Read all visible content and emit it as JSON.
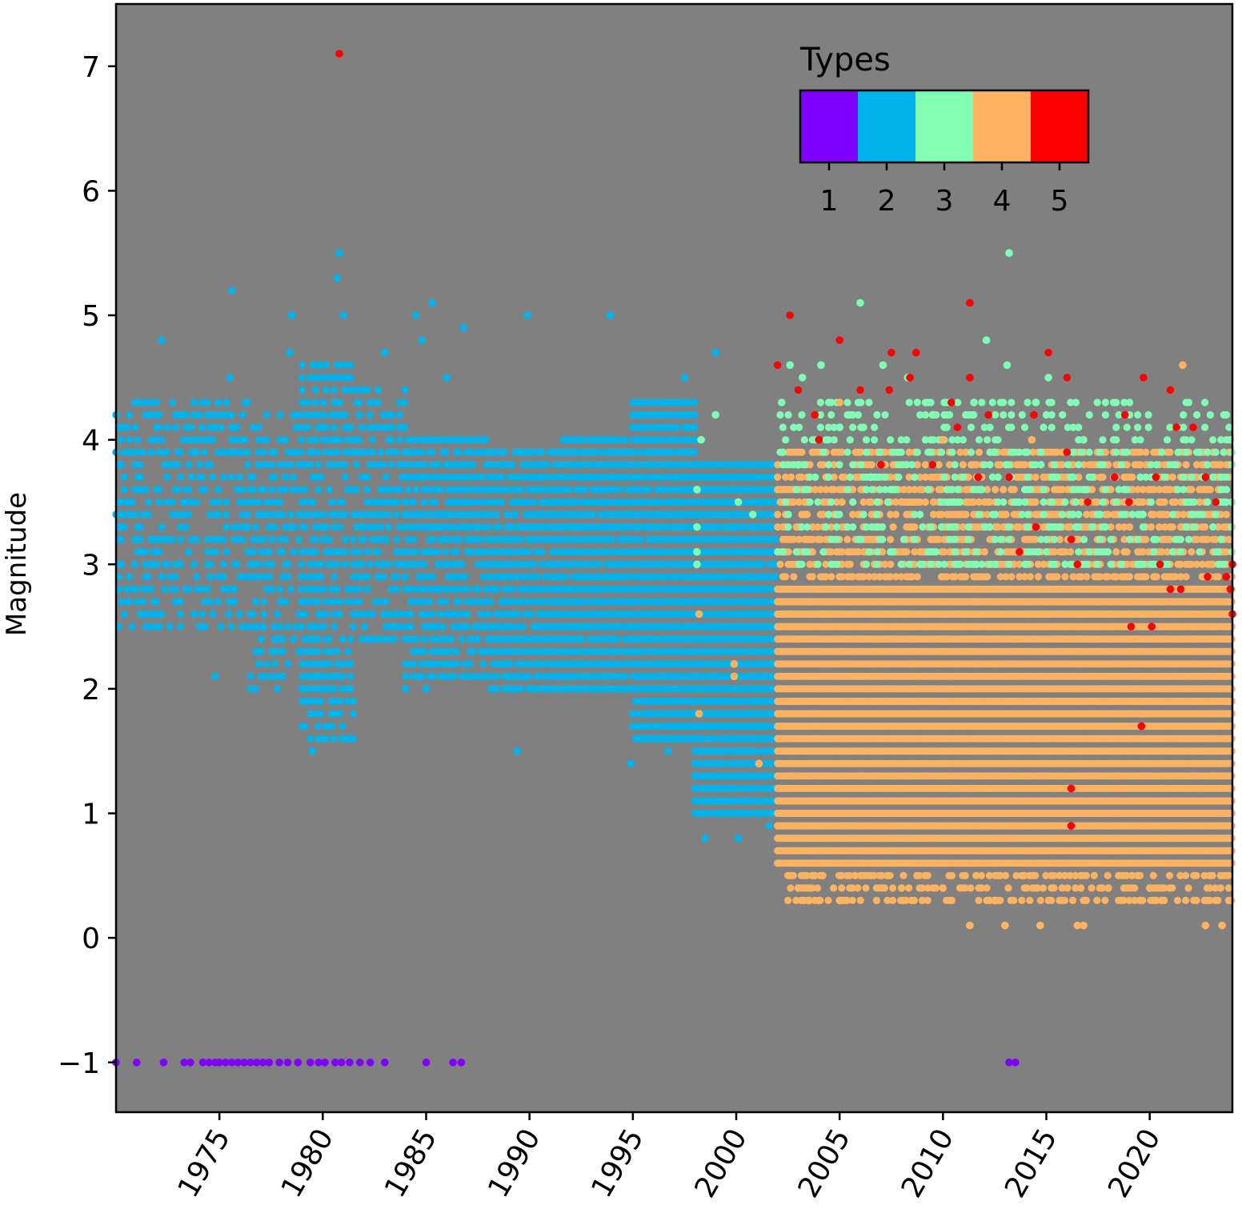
{
  "chart_data": {
    "type": "scatter",
    "title": "",
    "xlabel": "",
    "ylabel": "Magnitude",
    "xlim": [
      1970,
      2024
    ],
    "ylim": [
      -1.4,
      7.5
    ],
    "x_ticks": [
      "1975",
      "1980",
      "1985",
      "1990",
      "1995",
      "2000",
      "2005",
      "2010",
      "2015",
      "2020"
    ],
    "y_ticks": [
      "−1",
      "0",
      "1",
      "2",
      "3",
      "4",
      "5",
      "6",
      "7"
    ],
    "grid": false,
    "background_color": "#808080",
    "legend": {
      "title": "Types",
      "placement": "top-right",
      "kind": "colorbar",
      "categories": [
        "1",
        "2",
        "3",
        "4",
        "5"
      ],
      "colors": [
        "#8000ff",
        "#00b4eb",
        "#80ffb4",
        "#ffb360",
        "#ff0000"
      ]
    },
    "series": [
      {
        "name": "1",
        "color": "#8000ff",
        "points": [
          [
            1970.0,
            -1
          ],
          [
            1971.0,
            -1
          ],
          [
            1972.3,
            -1
          ],
          [
            1973.3,
            -1
          ],
          [
            1973.6,
            -1
          ],
          [
            1974.2,
            -1
          ],
          [
            1974.5,
            -1
          ],
          [
            1974.8,
            -1
          ],
          [
            1975.0,
            -1
          ],
          [
            1975.3,
            -1
          ],
          [
            1975.6,
            -1
          ],
          [
            1975.9,
            -1
          ],
          [
            1976.2,
            -1
          ],
          [
            1976.5,
            -1
          ],
          [
            1976.8,
            -1
          ],
          [
            1977.1,
            -1
          ],
          [
            1977.4,
            -1
          ],
          [
            1977.9,
            -1
          ],
          [
            1978.3,
            -1
          ],
          [
            1978.8,
            -1
          ],
          [
            1979.4,
            -1
          ],
          [
            1979.8,
            -1
          ],
          [
            1980.1,
            -1
          ],
          [
            1980.6,
            -1
          ],
          [
            1980.9,
            -1
          ],
          [
            1981.3,
            -1
          ],
          [
            1981.8,
            -1
          ],
          [
            1982.3,
            -1
          ],
          [
            1983.0,
            -1
          ],
          [
            1985.0,
            -1
          ],
          [
            1986.3,
            -1
          ],
          [
            1986.7,
            -1
          ],
          [
            2013.2,
            -1
          ],
          [
            2013.5,
            -1
          ]
        ]
      },
      {
        "name": "2",
        "color": "#00b4eb",
        "points": [
          [
            1972.2,
            4.8
          ],
          [
            1975.6,
            5.2
          ],
          [
            1978.5,
            5.0
          ],
          [
            1980.8,
            5.5
          ],
          [
            1980.7,
            5.3
          ],
          [
            1981.0,
            5.0
          ],
          [
            1984.5,
            5.0
          ],
          [
            1985.3,
            5.1
          ],
          [
            1989.9,
            5.0
          ],
          [
            1993.9,
            5.0
          ],
          [
            1984.8,
            4.8
          ],
          [
            1986.8,
            4.9
          ],
          [
            1983.0,
            4.7
          ],
          [
            1999.0,
            4.7
          ],
          [
            1978.4,
            4.7
          ],
          [
            1979.5,
            1.5
          ],
          [
            1989.4,
            1.5
          ],
          [
            1994.9,
            1.4
          ],
          [
            1998.5,
            0.8
          ],
          [
            2000.1,
            0.8
          ],
          [
            2001.6,
            0.9
          ],
          [
            1974.8,
            2.1
          ],
          [
            1977.6,
            2.1
          ],
          [
            1984.0,
            2.0
          ],
          [
            1985.0,
            2.0
          ],
          [
            1996.7,
            1.5
          ],
          [
            1998.0,
            1.8
          ],
          [
            1999.4,
            1.0
          ],
          [
            1999.8,
            1.1
          ],
          [
            1997.5,
            4.5
          ],
          [
            1986.0,
            4.5
          ],
          [
            1975.5,
            4.5
          ]
        ]
      },
      {
        "name": "3",
        "color": "#80ffb4",
        "points": [
          [
            2013.2,
            5.5
          ],
          [
            2006.0,
            5.1
          ],
          [
            2012.1,
            4.8
          ],
          [
            2002.6,
            4.6
          ],
          [
            2003.2,
            4.5
          ],
          [
            2004.1,
            4.6
          ],
          [
            2007.1,
            4.6
          ],
          [
            2008.3,
            4.5
          ],
          [
            2013.1,
            4.6
          ],
          [
            2015.1,
            4.5
          ],
          [
            1998.3,
            4.0
          ],
          [
            1999.0,
            4.2
          ],
          [
            2000.1,
            3.5
          ],
          [
            2000.8,
            3.4
          ],
          [
            2002.2,
            4.3
          ],
          [
            2005.0,
            4.1
          ],
          [
            2009.5,
            4.2
          ],
          [
            2011.5,
            4.3
          ],
          [
            2014.5,
            4.3
          ],
          [
            2016.8,
            4.0
          ],
          [
            2023.9,
            4.0
          ],
          [
            1998.1,
            3.6
          ],
          [
            1998.1,
            3.3
          ],
          [
            1998.1,
            3.1
          ],
          [
            1998.1,
            3.0
          ],
          [
            2003.0,
            3.8
          ],
          [
            2006.5,
            3.7
          ],
          [
            2010.5,
            3.5
          ],
          [
            2012.5,
            3.9
          ]
        ]
      },
      {
        "name": "4",
        "color": "#ffb360",
        "points": [
          [
            2021.6,
            4.6
          ],
          [
            2006.0,
            4.4
          ],
          [
            2014.3,
            4.0
          ],
          [
            2005.0,
            4.3
          ],
          [
            2010.0,
            4.0
          ],
          [
            1998.2,
            2.6
          ],
          [
            1998.2,
            1.8
          ],
          [
            1999.9,
            2.2
          ],
          [
            1999.9,
            2.1
          ],
          [
            2001.1,
            1.4
          ],
          [
            2003.0,
            0.4
          ],
          [
            2003.5,
            0.3
          ],
          [
            2004.0,
            0.3
          ],
          [
            2005.0,
            0.3
          ],
          [
            2011.3,
            0.1
          ],
          [
            2013.0,
            0.1
          ],
          [
            2014.7,
            0.1
          ],
          [
            2016.5,
            0.1
          ],
          [
            2016.8,
            0.1
          ],
          [
            2022.7,
            0.1
          ],
          [
            2023.5,
            0.1
          ],
          [
            2008.0,
            0.4
          ],
          [
            2010.0,
            0.4
          ],
          [
            2012.5,
            0.3
          ],
          [
            2018.0,
            0.4
          ],
          [
            2020.0,
            0.4
          ]
        ]
      },
      {
        "name": "5",
        "color": "#ff0000",
        "points": [
          [
            1980.8,
            7.1
          ],
          [
            2011.3,
            5.1
          ],
          [
            2002.6,
            5.0
          ],
          [
            2005.0,
            4.8
          ],
          [
            2015.1,
            4.7
          ],
          [
            2007.5,
            4.7
          ],
          [
            2008.7,
            4.7
          ],
          [
            2016.0,
            4.5
          ],
          [
            2019.7,
            4.5
          ],
          [
            2011.3,
            4.5
          ],
          [
            2008.4,
            4.5
          ],
          [
            2002.0,
            4.6
          ],
          [
            2003.0,
            4.4
          ],
          [
            2006.0,
            4.4
          ],
          [
            2007.4,
            4.4
          ],
          [
            2021.0,
            4.4
          ],
          [
            2013.2,
            3.7
          ],
          [
            2013.7,
            3.1
          ],
          [
            2014.5,
            3.3
          ],
          [
            2016.2,
            1.2
          ],
          [
            2016.2,
            0.9
          ],
          [
            2019.6,
            1.7
          ],
          [
            2019.1,
            2.5
          ],
          [
            2020.1,
            2.5
          ],
          [
            2016.2,
            3.2
          ],
          [
            2016.5,
            3.0
          ],
          [
            2020.5,
            3.0
          ],
          [
            2021.0,
            2.8
          ],
          [
            2021.5,
            2.8
          ],
          [
            2022.8,
            2.9
          ],
          [
            2023.7,
            2.9
          ],
          [
            2023.9,
            2.8
          ],
          [
            2024.0,
            3.0
          ],
          [
            2024.0,
            2.6
          ],
          [
            2003.8,
            4.2
          ],
          [
            2004.0,
            4.0
          ],
          [
            2007.0,
            3.8
          ],
          [
            2009.5,
            3.8
          ],
          [
            2010.4,
            4.3
          ],
          [
            2010.7,
            4.1
          ],
          [
            2011.7,
            3.7
          ],
          [
            2012.2,
            4.2
          ],
          [
            2014.4,
            4.2
          ],
          [
            2016.0,
            3.9
          ],
          [
            2017.0,
            3.5
          ],
          [
            2018.3,
            3.7
          ],
          [
            2018.8,
            4.2
          ],
          [
            2019.0,
            3.5
          ],
          [
            2020.3,
            3.7
          ],
          [
            2021.3,
            4.1
          ],
          [
            2022.1,
            4.1
          ],
          [
            2022.7,
            3.7
          ],
          [
            2023.2,
            3.5
          ]
        ]
      }
    ],
    "dense_bands": [
      {
        "series": "2",
        "x_start": 1970.0,
        "x_end": 1976.5,
        "y_min": 2.5,
        "y_max": 4.3,
        "density": 0.35
      },
      {
        "series": "2",
        "x_start": 1976.5,
        "x_end": 1979.0,
        "y_min": 2.0,
        "y_max": 4.2,
        "density": 0.35
      },
      {
        "series": "2",
        "x_start": 1979.0,
        "x_end": 1981.5,
        "y_min": 1.6,
        "y_max": 4.6,
        "density": 0.45
      },
      {
        "series": "2",
        "x_start": 1981.5,
        "x_end": 1984.0,
        "y_min": 2.4,
        "y_max": 4.4,
        "density": 0.45
      },
      {
        "series": "2",
        "x_start": 1984.0,
        "x_end": 1988.0,
        "y_min": 2.1,
        "y_max": 4.0,
        "density": 0.6
      },
      {
        "series": "2",
        "x_start": 1988.0,
        "x_end": 1991.5,
        "y_min": 2.0,
        "y_max": 3.9,
        "density": 0.75
      },
      {
        "series": "2",
        "x_start": 1991.5,
        "x_end": 1995.0,
        "y_min": 2.0,
        "y_max": 4.0,
        "density": 0.85
      },
      {
        "series": "2",
        "x_start": 1995.0,
        "x_end": 1998.0,
        "y_min": 1.6,
        "y_max": 4.3,
        "density": 0.9
      },
      {
        "series": "2",
        "x_start": 1998.0,
        "x_end": 2002.0,
        "y_min": 1.0,
        "y_max": 3.8,
        "density": 0.95
      },
      {
        "series": "4",
        "x_start": 2002.0,
        "x_end": 2024.0,
        "y_min": 0.6,
        "y_max": 2.8,
        "density": 1.0
      },
      {
        "series": "4",
        "x_start": 2002.0,
        "x_end": 2024.0,
        "y_min": 2.9,
        "y_max": 3.9,
        "density": 0.55
      },
      {
        "series": "4",
        "x_start": 2002.5,
        "x_end": 2024.0,
        "y_min": 0.3,
        "y_max": 0.5,
        "density": 0.45
      },
      {
        "series": "3",
        "x_start": 2002.0,
        "x_end": 2024.0,
        "y_min": 3.0,
        "y_max": 4.3,
        "density": 0.2
      }
    ]
  }
}
